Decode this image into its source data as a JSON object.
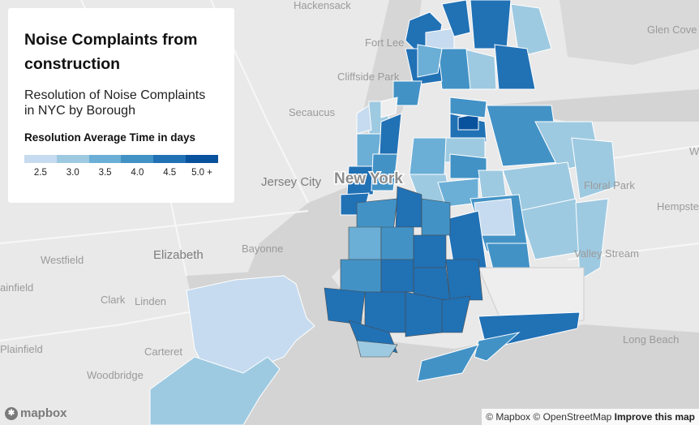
{
  "panel": {
    "title": "Noise Complaints from construction",
    "subtitle": "Resolution of Noise Complaints in NYC by Borough",
    "legend_title": "Resolution Average Time in days",
    "legend": [
      {
        "label": "2.5",
        "color": "#c6dbef"
      },
      {
        "label": "3.0",
        "color": "#9ecae1"
      },
      {
        "label": "3.5",
        "color": "#6baed6"
      },
      {
        "label": "4.0",
        "color": "#4292c6"
      },
      {
        "label": "4.5",
        "color": "#2171b5"
      },
      {
        "label": "5.0 +",
        "color": "#08519c"
      }
    ]
  },
  "places": {
    "hackensack": "Hackensack",
    "fort_lee": "Fort Lee",
    "cliffside_park": "Cliffside Park",
    "secaucus": "Secaucus",
    "jersey_city": "Jersey City",
    "new_york": "New York",
    "bayonne": "Bayonne",
    "elizabeth": "Elizabeth",
    "westfield": "Westfield",
    "clark": "Clark",
    "linden": "Linden",
    "carteret": "Carteret",
    "plainfield": "Plainfield",
    "plainfield_partial": "ainfield",
    "woodbridge": "Woodbridge",
    "glen_cove": "Glen Cove",
    "floral_park": "Floral Park",
    "hempstead": "Hempste",
    "valley_stream": "Valley Stream",
    "long_beach": "Long Beach",
    "edge_w": "W"
  },
  "attribution": {
    "mapbox": "© Mapbox",
    "osm": "© OpenStreetMap",
    "improve": "Improve this map"
  },
  "logo_text": "mapbox"
}
